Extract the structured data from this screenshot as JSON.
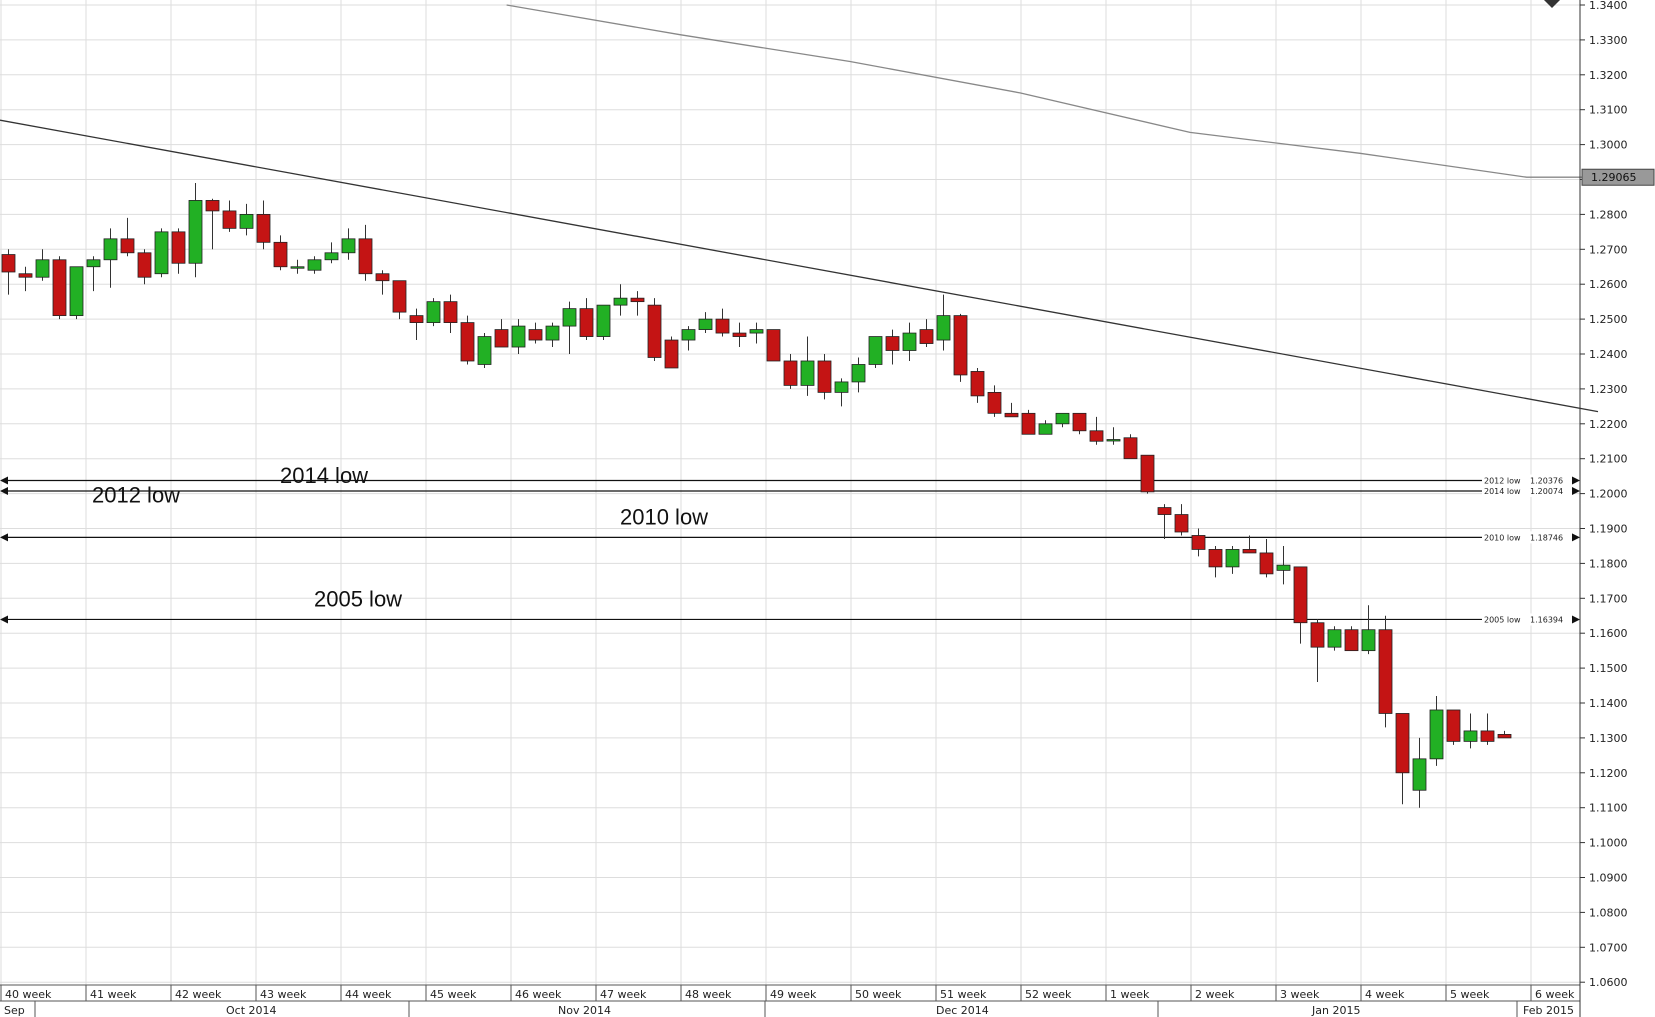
{
  "chart_data": {
    "type": "candlestick",
    "title": "",
    "ylim": [
      1.06,
      1.34
    ],
    "y_ticks": [
      "1.3400",
      "1.3300",
      "1.3200",
      "1.3100",
      "1.3000",
      "1.2900",
      "1.2800",
      "1.2700",
      "1.2600",
      "1.2500",
      "1.2400",
      "1.2300",
      "1.2200",
      "1.2100",
      "1.2000",
      "1.1900",
      "1.1800",
      "1.1700",
      "1.1600",
      "1.1500",
      "1.1400",
      "1.1300",
      "1.1200",
      "1.1100",
      "1.1000",
      "1.0900",
      "1.0800",
      "1.0700",
      "1.0600"
    ],
    "grid": true,
    "current_price": {
      "label": "1.29065",
      "value": 1.29065
    },
    "x_week_labels": [
      "40 week",
      "41 week",
      "42 week",
      "43 week",
      "44 week",
      "45 week",
      "46 week",
      "47 week",
      "48 week",
      "49 week",
      "50 week",
      "51 week",
      "52 week",
      "1 week",
      "2 week",
      "3 week",
      "4 week",
      "5 week",
      "6 week"
    ],
    "x_month_labels": [
      "Sep",
      "Oct 2014",
      "Nov 2014",
      "Dec 2014",
      "Jan 2015",
      "Feb 2015"
    ],
    "levels": [
      {
        "name": "2014 low",
        "tag": "2014 low",
        "value_label": "1.20074",
        "value": 1.20074
      },
      {
        "name": "2012 low",
        "tag": "2012 low",
        "value_label": "1.20376",
        "value": 1.20376
      },
      {
        "name": "2010 low",
        "tag": "2010 low",
        "value_label": "1.18746",
        "value": 1.18746
      },
      {
        "name": "2005 low",
        "tag": "2005 low",
        "value_label": "1.16394",
        "value": 1.16394
      }
    ],
    "trendlines": [
      {
        "name": "trendline",
        "from": [
          0,
          1.307
        ],
        "to": [
          94,
          1.2235
        ]
      },
      {
        "name": "moving-average",
        "points": [
          [
            29.8,
            1.34
          ],
          [
            40,
            1.3315
          ],
          [
            50,
            1.3238
          ],
          [
            60,
            1.3148
          ],
          [
            70,
            1.3035
          ],
          [
            80,
            1.2975
          ],
          [
            89.8,
            1.29065
          ],
          [
            93.5,
            1.29065
          ]
        ]
      }
    ],
    "candles": [
      {
        "o": 1.2685,
        "h": 1.27,
        "l": 1.257,
        "c": 1.2635
      },
      {
        "o": 1.263,
        "h": 1.265,
        "l": 1.258,
        "c": 1.262
      },
      {
        "o": 1.262,
        "h": 1.27,
        "l": 1.261,
        "c": 1.267
      },
      {
        "o": 1.267,
        "h": 1.268,
        "l": 1.25,
        "c": 1.251
      },
      {
        "o": 1.251,
        "h": 1.265,
        "l": 1.25,
        "c": 1.265
      },
      {
        "o": 1.265,
        "h": 1.268,
        "l": 1.258,
        "c": 1.267
      },
      {
        "o": 1.267,
        "h": 1.276,
        "l": 1.259,
        "c": 1.273
      },
      {
        "o": 1.273,
        "h": 1.279,
        "l": 1.268,
        "c": 1.269
      },
      {
        "o": 1.269,
        "h": 1.27,
        "l": 1.26,
        "c": 1.262
      },
      {
        "o": 1.263,
        "h": 1.276,
        "l": 1.262,
        "c": 1.275
      },
      {
        "o": 1.275,
        "h": 1.276,
        "l": 1.263,
        "c": 1.266
      },
      {
        "o": 1.266,
        "h": 1.289,
        "l": 1.262,
        "c": 1.284
      },
      {
        "o": 1.284,
        "h": 1.2845,
        "l": 1.27,
        "c": 1.281
      },
      {
        "o": 1.281,
        "h": 1.284,
        "l": 1.275,
        "c": 1.276
      },
      {
        "o": 1.276,
        "h": 1.283,
        "l": 1.274,
        "c": 1.28
      },
      {
        "o": 1.28,
        "h": 1.284,
        "l": 1.27,
        "c": 1.272
      },
      {
        "o": 1.272,
        "h": 1.274,
        "l": 1.264,
        "c": 1.265
      },
      {
        "o": 1.265,
        "h": 1.267,
        "l": 1.263,
        "c": 1.265
      },
      {
        "o": 1.264,
        "h": 1.268,
        "l": 1.263,
        "c": 1.267
      },
      {
        "o": 1.267,
        "h": 1.272,
        "l": 1.266,
        "c": 1.269
      },
      {
        "o": 1.269,
        "h": 1.276,
        "l": 1.267,
        "c": 1.273
      },
      {
        "o": 1.273,
        "h": 1.277,
        "l": 1.261,
        "c": 1.263
      },
      {
        "o": 1.263,
        "h": 1.264,
        "l": 1.257,
        "c": 1.261
      },
      {
        "o": 1.261,
        "h": 1.261,
        "l": 1.25,
        "c": 1.252
      },
      {
        "o": 1.251,
        "h": 1.253,
        "l": 1.244,
        "c": 1.249
      },
      {
        "o": 1.249,
        "h": 1.256,
        "l": 1.248,
        "c": 1.255
      },
      {
        "o": 1.255,
        "h": 1.257,
        "l": 1.246,
        "c": 1.249
      },
      {
        "o": 1.249,
        "h": 1.251,
        "l": 1.237,
        "c": 1.238
      },
      {
        "o": 1.237,
        "h": 1.246,
        "l": 1.236,
        "c": 1.245
      },
      {
        "o": 1.247,
        "h": 1.25,
        "l": 1.242,
        "c": 1.242
      },
      {
        "o": 1.242,
        "h": 1.25,
        "l": 1.24,
        "c": 1.248
      },
      {
        "o": 1.247,
        "h": 1.249,
        "l": 1.243,
        "c": 1.244
      },
      {
        "o": 1.244,
        "h": 1.249,
        "l": 1.242,
        "c": 1.248
      },
      {
        "o": 1.248,
        "h": 1.255,
        "l": 1.24,
        "c": 1.253
      },
      {
        "o": 1.253,
        "h": 1.256,
        "l": 1.244,
        "c": 1.245
      },
      {
        "o": 1.245,
        "h": 1.254,
        "l": 1.244,
        "c": 1.254
      },
      {
        "o": 1.254,
        "h": 1.26,
        "l": 1.251,
        "c": 1.256
      },
      {
        "o": 1.256,
        "h": 1.258,
        "l": 1.251,
        "c": 1.255
      },
      {
        "o": 1.254,
        "h": 1.256,
        "l": 1.238,
        "c": 1.239
      },
      {
        "o": 1.244,
        "h": 1.245,
        "l": 1.236,
        "c": 1.236
      },
      {
        "o": 1.244,
        "h": 1.248,
        "l": 1.241,
        "c": 1.247
      },
      {
        "o": 1.247,
        "h": 1.252,
        "l": 1.246,
        "c": 1.25
      },
      {
        "o": 1.25,
        "h": 1.253,
        "l": 1.245,
        "c": 1.246
      },
      {
        "o": 1.246,
        "h": 1.249,
        "l": 1.242,
        "c": 1.245
      },
      {
        "o": 1.246,
        "h": 1.249,
        "l": 1.243,
        "c": 1.247
      },
      {
        "o": 1.247,
        "h": 1.247,
        "l": 1.238,
        "c": 1.238
      },
      {
        "o": 1.238,
        "h": 1.24,
        "l": 1.23,
        "c": 1.231
      },
      {
        "o": 1.231,
        "h": 1.245,
        "l": 1.228,
        "c": 1.238
      },
      {
        "o": 1.238,
        "h": 1.24,
        "l": 1.227,
        "c": 1.229
      },
      {
        "o": 1.229,
        "h": 1.233,
        "l": 1.225,
        "c": 1.232
      },
      {
        "o": 1.232,
        "h": 1.239,
        "l": 1.229,
        "c": 1.237
      },
      {
        "o": 1.237,
        "h": 1.245,
        "l": 1.236,
        "c": 1.245
      },
      {
        "o": 1.245,
        "h": 1.247,
        "l": 1.237,
        "c": 1.241
      },
      {
        "o": 1.241,
        "h": 1.249,
        "l": 1.238,
        "c": 1.246
      },
      {
        "o": 1.247,
        "h": 1.25,
        "l": 1.242,
        "c": 1.243
      },
      {
        "o": 1.244,
        "h": 1.257,
        "l": 1.241,
        "c": 1.251
      },
      {
        "o": 1.251,
        "h": 1.2515,
        "l": 1.232,
        "c": 1.234
      },
      {
        "o": 1.235,
        "h": 1.236,
        "l": 1.226,
        "c": 1.228
      },
      {
        "o": 1.229,
        "h": 1.231,
        "l": 1.222,
        "c": 1.223
      },
      {
        "o": 1.223,
        "h": 1.226,
        "l": 1.222,
        "c": 1.222
      },
      {
        "o": 1.223,
        "h": 1.224,
        "l": 1.217,
        "c": 1.217
      },
      {
        "o": 1.217,
        "h": 1.221,
        "l": 1.217,
        "c": 1.22
      },
      {
        "o": 1.22,
        "h": 1.223,
        "l": 1.219,
        "c": 1.223
      },
      {
        "o": 1.223,
        "h": 1.223,
        "l": 1.217,
        "c": 1.218
      },
      {
        "o": 1.218,
        "h": 1.222,
        "l": 1.214,
        "c": 1.215
      },
      {
        "o": 1.2155,
        "h": 1.219,
        "l": 1.214,
        "c": 1.2155
      },
      {
        "o": 1.216,
        "h": 1.217,
        "l": 1.21,
        "c": 1.21
      },
      {
        "o": 1.211,
        "h": 1.211,
        "l": 1.2,
        "c": 1.2005
      },
      {
        "o": 1.196,
        "h": 1.197,
        "l": 1.187,
        "c": 1.194
      },
      {
        "o": 1.194,
        "h": 1.197,
        "l": 1.188,
        "c": 1.189
      },
      {
        "o": 1.188,
        "h": 1.19,
        "l": 1.182,
        "c": 1.184
      },
      {
        "o": 1.184,
        "h": 1.185,
        "l": 1.176,
        "c": 1.179
      },
      {
        "o": 1.179,
        "h": 1.185,
        "l": 1.177,
        "c": 1.184
      },
      {
        "o": 1.184,
        "h": 1.188,
        "l": 1.183,
        "c": 1.183
      },
      {
        "o": 1.183,
        "h": 1.187,
        "l": 1.176,
        "c": 1.177
      },
      {
        "o": 1.178,
        "h": 1.185,
        "l": 1.174,
        "c": 1.1795
      },
      {
        "o": 1.179,
        "h": 1.179,
        "l": 1.157,
        "c": 1.163
      },
      {
        "o": 1.163,
        "h": 1.164,
        "l": 1.146,
        "c": 1.156
      },
      {
        "o": 1.156,
        "h": 1.162,
        "l": 1.155,
        "c": 1.161
      },
      {
        "o": 1.161,
        "h": 1.162,
        "l": 1.155,
        "c": 1.155
      },
      {
        "o": 1.155,
        "h": 1.168,
        "l": 1.154,
        "c": 1.161
      },
      {
        "o": 1.161,
        "h": 1.165,
        "l": 1.133,
        "c": 1.137
      },
      {
        "o": 1.137,
        "h": 1.137,
        "l": 1.111,
        "c": 1.12
      },
      {
        "o": 1.115,
        "h": 1.13,
        "l": 1.11,
        "c": 1.124
      },
      {
        "o": 1.124,
        "h": 1.142,
        "l": 1.122,
        "c": 1.138
      },
      {
        "o": 1.138,
        "h": 1.138,
        "l": 1.128,
        "c": 1.129
      },
      {
        "o": 1.129,
        "h": 1.137,
        "l": 1.127,
        "c": 1.132
      },
      {
        "o": 1.132,
        "h": 1.137,
        "l": 1.128,
        "c": 1.129
      },
      {
        "o": 1.131,
        "h": 1.132,
        "l": 1.13,
        "c": 1.13
      }
    ]
  }
}
